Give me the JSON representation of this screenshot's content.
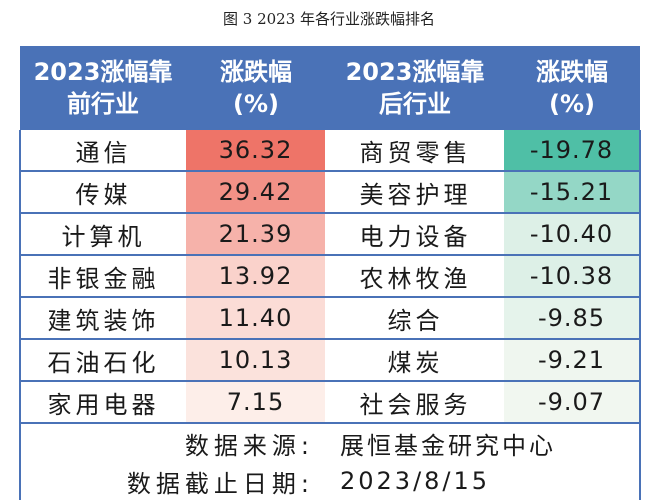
{
  "caption": "图 3   2023 年各行业涨跌幅排名",
  "chart_data": {
    "type": "table",
    "columns": [
      "2023涨幅靠前行业",
      "涨跌幅(%)",
      "2023涨幅靠后行业",
      "涨跌幅(%)"
    ],
    "header": {
      "top_name_l1": "2023涨幅靠",
      "top_name_l2": "前行业",
      "chg_l1": "涨跌幅",
      "chg_l2": "(%)",
      "bottom_name_l1": "2023涨幅靠",
      "bottom_name_l2": "后行业"
    },
    "rows": [
      {
        "top_name": "通信",
        "top_value": 36.32,
        "bottom_name": "商贸零售",
        "bottom_value": -19.78
      },
      {
        "top_name": "传媒",
        "top_value": 29.42,
        "bottom_name": "美容护理",
        "bottom_value": -15.21
      },
      {
        "top_name": "计算机",
        "top_value": 21.39,
        "bottom_name": "电力设备",
        "bottom_value": -10.4
      },
      {
        "top_name": "非银金融",
        "top_value": 13.92,
        "bottom_name": "农林牧渔",
        "bottom_value": -10.38
      },
      {
        "top_name": "建筑装饰",
        "top_value": 11.4,
        "bottom_name": "综合",
        "bottom_value": -9.85
      },
      {
        "top_name": "石油石化",
        "top_value": 10.13,
        "bottom_name": "煤炭",
        "bottom_value": -9.21
      },
      {
        "top_name": "家用电器",
        "top_value": 7.15,
        "bottom_name": "社会服务",
        "bottom_value": -9.07
      }
    ],
    "footer": [
      {
        "label": "数据来源:",
        "value": "展恒基金研究中心"
      },
      {
        "label": "数据截止日期:",
        "value": "2023/8/15"
      }
    ],
    "colors": {
      "header": "#4a72b7",
      "positive_max": "#ee7468",
      "positive_min": "#fdeee9",
      "negative_max": "#4fbfa6",
      "negative_min": "#f1f7f0"
    }
  }
}
